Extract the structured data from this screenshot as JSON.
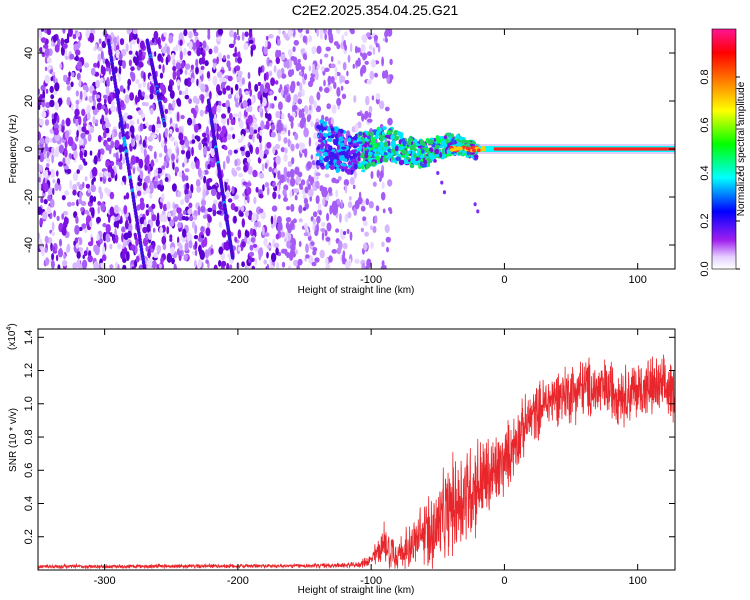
{
  "title": "C2E2.2025.354.04.25.G21",
  "colors": {
    "snr_line": "#e8262b",
    "axis": "#000000",
    "background": "#ffffff",
    "colormap": [
      "#ffffff",
      "#a020f0",
      "#0000ff",
      "#00ffff",
      "#00ff00",
      "#ffff00",
      "#ff8000",
      "#ff0000",
      "#ff1493"
    ]
  },
  "chart_data": [
    {
      "type": "heatmap",
      "name": "spectrogram",
      "xlabel": "Height of straight line (km)",
      "ylabel": "Frequency (Hz)",
      "xlim": [
        -350,
        128
      ],
      "ylim": [
        -50,
        50
      ],
      "x_ticks": [
        -300,
        -200,
        -100,
        0,
        100
      ],
      "x_tick_labels": [
        "-300",
        "-200",
        "-100",
        "0",
        "100"
      ],
      "y_ticks": [
        -40,
        -20,
        0,
        20,
        40
      ],
      "y_tick_labels": [
        "-40",
        "-20",
        "0",
        "20",
        "40"
      ],
      "colorbar": {
        "label": "Normalized spectral amplitude",
        "range": [
          0.0,
          1.0
        ],
        "ticks": [
          0.0,
          0.2,
          0.4,
          0.6,
          0.8
        ],
        "tick_labels": [
          "0.0",
          "0.2",
          "0.4",
          "0.6",
          "0.8"
        ]
      },
      "features": {
        "noise_region_x": [
          -350,
          -110
        ],
        "carrier_frequency_hz": 0,
        "strong_carrier_x": [
          -20,
          128
        ],
        "diagonal_streaks": [
          {
            "x_start": -297,
            "y_start": 45,
            "x_end": -270,
            "y_end": -50
          },
          {
            "x_start": -268,
            "y_start": 45,
            "x_end": -255,
            "y_end": 10
          },
          {
            "x_start": -222,
            "y_start": 20,
            "x_end": -204,
            "y_end": -45
          }
        ]
      }
    },
    {
      "type": "line",
      "name": "snr",
      "xlabel": "Height of straight line (km)",
      "ylabel": "SNR (10 * v/v)",
      "scale_label": "(x10",
      "scale_exponent": "4",
      "xlim": [
        -350,
        128
      ],
      "ylim": [
        0,
        14500
      ],
      "x_ticks": [
        -300,
        -200,
        -100,
        0,
        100
      ],
      "x_tick_labels": [
        "-300",
        "-200",
        "-100",
        "0",
        "100"
      ],
      "y_ticks": [
        2000,
        4000,
        6000,
        8000,
        10000,
        12000,
        14000
      ],
      "y_tick_labels": [
        "0.2",
        "0.4",
        "0.6",
        "0.8",
        "1.0",
        "1.2",
        "1.4"
      ],
      "envelope": {
        "x": [
          -350,
          -150,
          -110,
          -100,
          -90,
          -80,
          -70,
          -60,
          -50,
          -40,
          -30,
          -20,
          -10,
          0,
          10,
          20,
          30,
          40,
          50,
          60,
          70,
          80,
          90,
          100,
          110,
          128
        ],
        "mean": [
          200,
          250,
          300,
          600,
          1600,
          1000,
          1500,
          2200,
          2600,
          3800,
          4500,
          5200,
          5600,
          6500,
          8000,
          9200,
          10000,
          10500,
          10700,
          11000,
          10800,
          10900,
          10600,
          10800,
          11000,
          10800
        ],
        "spread": [
          150,
          150,
          200,
          500,
          1600,
          1200,
          1500,
          2500,
          3000,
          3500,
          4000,
          3500,
          3000,
          2500,
          2200,
          2000,
          2000,
          2000,
          2200,
          2200,
          2200,
          2200,
          2200,
          2200,
          2200,
          2200
        ]
      }
    }
  ]
}
